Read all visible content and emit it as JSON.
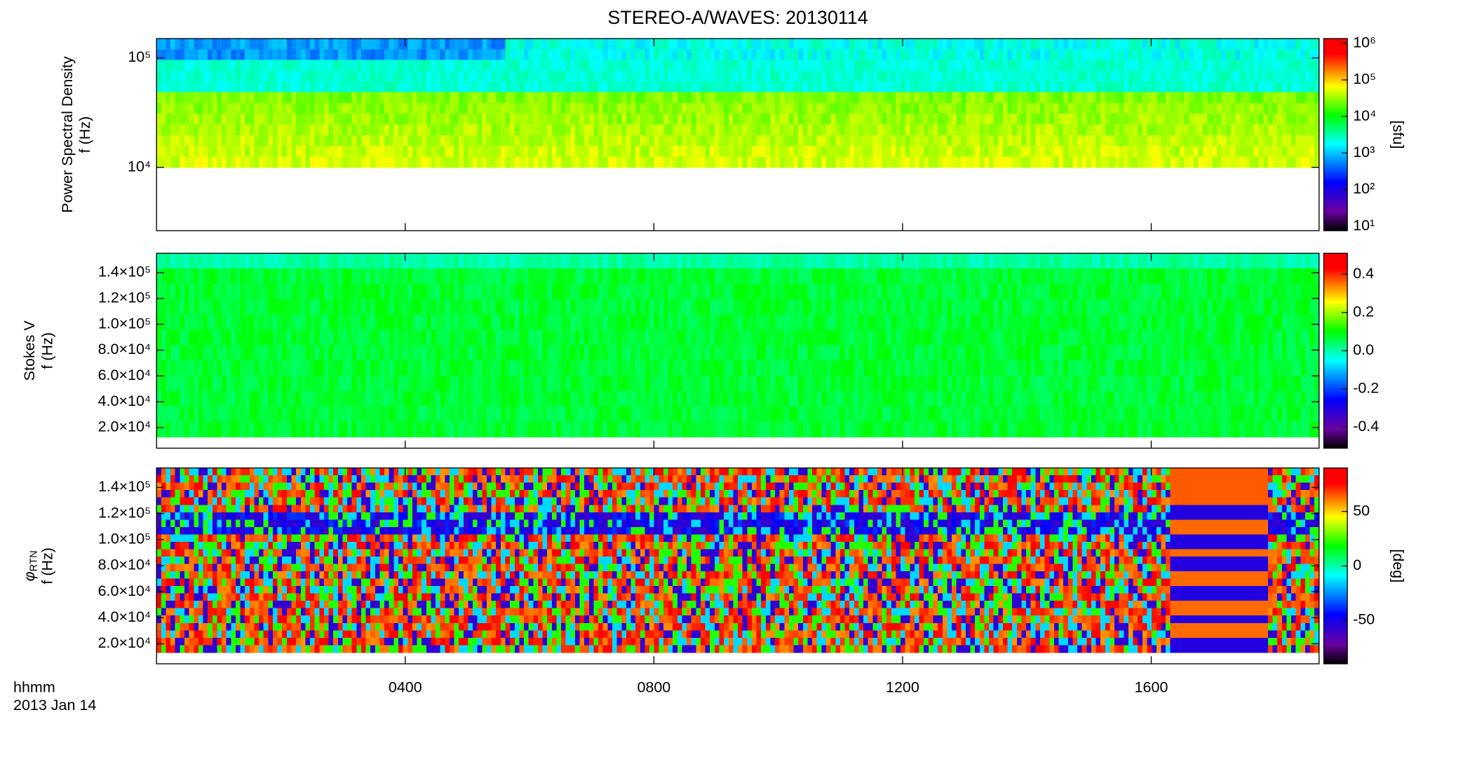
{
  "chart_data": [
    {
      "type": "spectrogram",
      "title": "STEREO-A/WAVES: 20130114",
      "ylabel": "Power Spectral Density",
      "ylabel_unit": "f (Hz)",
      "ylog": true,
      "ylim": [
        2640,
        150000
      ],
      "yticks": [
        {
          "value": 10000,
          "label": "10⁴"
        },
        {
          "value": 100000,
          "label": "10⁵"
        }
      ],
      "clog": true,
      "clim": [
        7.5,
        1350000
      ],
      "cticks": [
        {
          "value": 10,
          "label": "10¹"
        },
        {
          "value": 100,
          "label": "10²"
        },
        {
          "value": 1000,
          "label": "10³"
        },
        {
          "value": 10000,
          "label": "10⁴"
        },
        {
          "value": 100000,
          "label": "10⁵"
        },
        {
          "value": 1000000,
          "label": "10⁶"
        }
      ],
      "clabel": "[sfu]"
    },
    {
      "type": "spectrogram",
      "ylabel": "Stokes V",
      "ylabel_unit": "f (Hz)",
      "ylim": [
        4000,
        155000
      ],
      "yticks": [
        {
          "value": 20000,
          "label": "2.0×10⁴"
        },
        {
          "value": 40000,
          "label": "4.0×10⁴"
        },
        {
          "value": 60000,
          "label": "6.0×10⁴"
        },
        {
          "value": 80000,
          "label": "8.0×10⁴"
        },
        {
          "value": 100000,
          "label": "1.0×10⁵"
        },
        {
          "value": 120000,
          "label": "1.2×10⁵"
        },
        {
          "value": 140000,
          "label": "1.4×10⁵"
        }
      ],
      "clim": [
        -0.51,
        0.51
      ],
      "cticks": [
        0.4,
        0.2,
        {
          "value": 0,
          "label": "0.0"
        },
        -0.2,
        -0.4
      ]
    },
    {
      "type": "spectrogram",
      "ylabel": "φ",
      "ylabel_sub": "RTN",
      "ylabel_unit": "f (Hz)",
      "ylim": [
        4600,
        155000
      ],
      "yticks": [
        {
          "value": 20000,
          "label": "2.0×10⁴"
        },
        {
          "value": 40000,
          "label": "4.0×10⁴"
        },
        {
          "value": 60000,
          "label": "6.0×10⁴"
        },
        {
          "value": 80000,
          "label": "8.0×10⁴"
        },
        {
          "value": 100000,
          "label": "1.0×10⁵"
        },
        {
          "value": 120000,
          "label": "1.2×10⁵"
        },
        {
          "value": 140000,
          "label": "1.4×10⁵"
        }
      ],
      "clim": [
        -90,
        90
      ],
      "cticks": [
        50,
        0,
        -50
      ],
      "clabel": "[deg]",
      "xlabel": "hhmm",
      "date": "2013 Jan 14",
      "xlim": [
        0,
        18.7
      ],
      "xticks": [
        {
          "value": 4,
          "label": "0400"
        },
        {
          "value": 8,
          "label": "0800"
        },
        {
          "value": 12,
          "label": "1200"
        },
        {
          "value": 16,
          "label": "1600"
        }
      ]
    }
  ]
}
